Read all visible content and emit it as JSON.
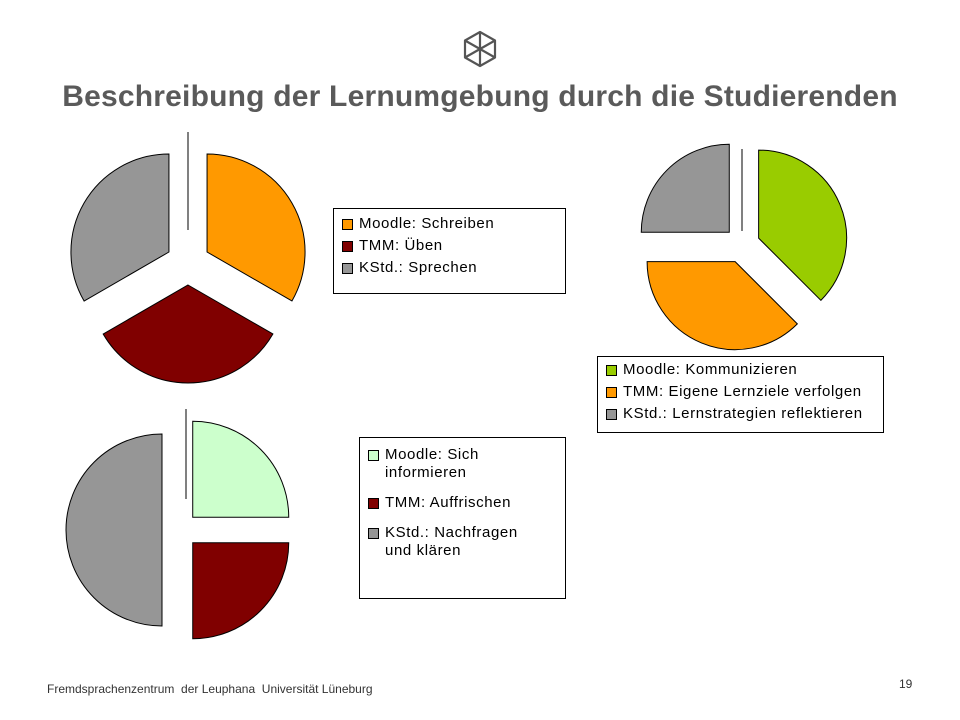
{
  "title": "Beschreibung der Lernumgebung durch die Studierenden",
  "logo": "cube-logo-icon",
  "colors": {
    "orange": "#ff9900",
    "darkred": "#800000",
    "gray": "#969696",
    "green": "#99cc00",
    "lightgreen": "#ccffcc",
    "title": "#5a5a5a"
  },
  "chart_data": [
    {
      "type": "pie",
      "title": "",
      "exploded": true,
      "slices": [
        {
          "label": "Moodle: Schreiben",
          "value": 33.33,
          "color": "#ff9900"
        },
        {
          "label": "TMM: Üben",
          "value": 33.33,
          "color": "#800000"
        },
        {
          "label": "KStd.: Sprechen",
          "value": 33.34,
          "color": "#969696"
        }
      ],
      "legend_position": "right"
    },
    {
      "type": "pie",
      "title": "",
      "exploded": true,
      "slices": [
        {
          "label": "Moodle: Kommunizieren",
          "value": 37.5,
          "color": "#99cc00"
        },
        {
          "label": "TMM: Eigene Lernziele verfolgen",
          "value": 37.5,
          "color": "#ff9900"
        },
        {
          "label": "KStd.: Lernstrategien reflektieren",
          "value": 25,
          "color": "#969696"
        }
      ],
      "legend_position": "bottom"
    },
    {
      "type": "pie",
      "title": "",
      "exploded": true,
      "slices": [
        {
          "label": "Moodle: Sich informieren",
          "value": 25,
          "color": "#ccffcc"
        },
        {
          "label": "TMM: Auffrischen",
          "value": 25,
          "color": "#800000"
        },
        {
          "label": "KStd.: Nachfragen und klären",
          "value": 50,
          "color": "#969696"
        }
      ],
      "legend_position": "right"
    }
  ],
  "footer": {
    "institution": "Fremdsprachenzentrum  der Leuphana  Universität Lüneburg",
    "page": "19"
  }
}
